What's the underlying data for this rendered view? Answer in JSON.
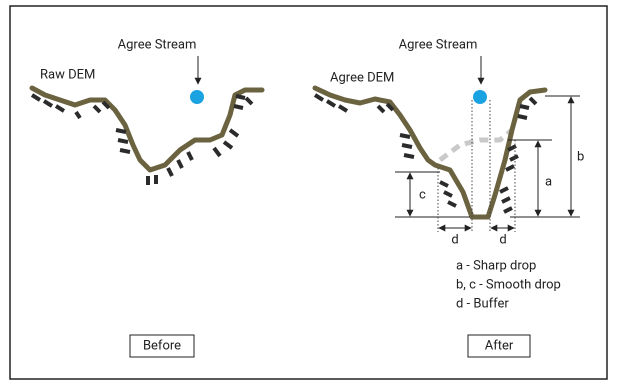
{
  "panels": [
    {
      "stream_label": "Agree Stream",
      "dem_label": "Raw DEM",
      "button": "Before"
    },
    {
      "stream_label": "Agree Stream",
      "dem_label": "Agree DEM",
      "button": "After"
    }
  ],
  "dimension_labels": [
    "a",
    "b",
    "c",
    "d",
    "d"
  ],
  "legend": [
    "a - Sharp drop",
    "b, c - Smooth drop",
    "d - Buffer"
  ]
}
